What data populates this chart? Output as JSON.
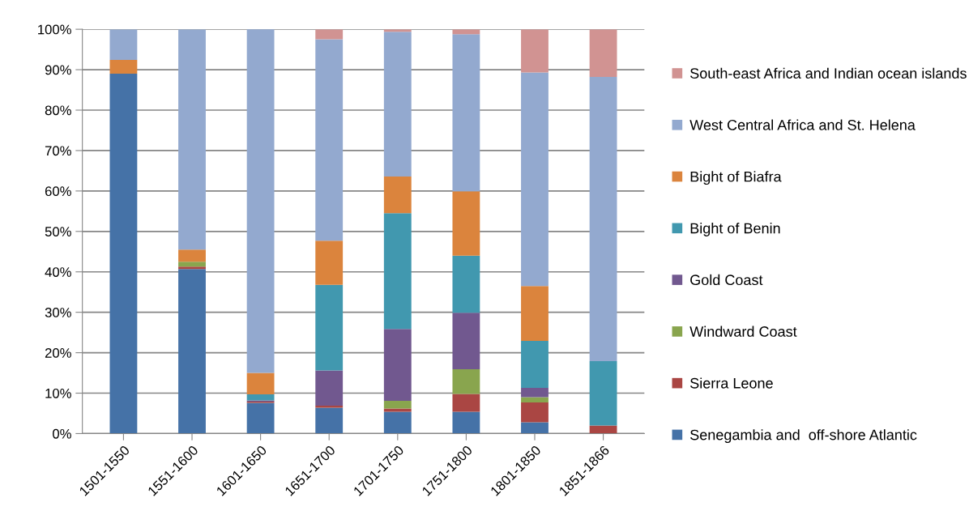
{
  "chart_data": {
    "type": "bar",
    "stacked": true,
    "categories": [
      "1501-1550",
      "1551-1600",
      "1601-1650",
      "1651-1700",
      "1701-1750",
      "1751-1800",
      "1801-1850",
      "1851-1866"
    ],
    "series": [
      {
        "name": "Senegambia and  off-shore Atlantic",
        "color": "#4572a7",
        "values": [
          89.0,
          40.7,
          7.6,
          6.4,
          5.4,
          5.4,
          2.8,
          0
        ]
      },
      {
        "name": "Sierra Leone",
        "color": "#aa4643",
        "values": [
          0,
          0.6,
          0.3,
          0.5,
          0.8,
          4.4,
          4.9,
          2.0
        ]
      },
      {
        "name": "Windward Coast",
        "color": "#89a54e",
        "values": [
          0,
          1.2,
          0,
          0,
          1.9,
          6.1,
          1.3,
          0
        ]
      },
      {
        "name": "Gold Coast",
        "color": "#71588f",
        "values": [
          0,
          0,
          0.3,
          8.7,
          17.8,
          14.0,
          2.3,
          0
        ]
      },
      {
        "name": "Bight of Benin",
        "color": "#4198af",
        "values": [
          0,
          0,
          1.5,
          21.2,
          28.6,
          14.1,
          11.6,
          15.9
        ]
      },
      {
        "name": "Bight of Biafra",
        "color": "#db843d",
        "values": [
          3.4,
          3.0,
          5.3,
          10.9,
          9.1,
          15.9,
          13.6,
          0
        ]
      },
      {
        "name": "West Central Africa and St. Helena",
        "color": "#93a9cf",
        "values": [
          7.6,
          54.5,
          85.1,
          49.8,
          35.8,
          38.9,
          52.8,
          70.3
        ]
      },
      {
        "name": "South-east Africa and Indian ocean islands",
        "color": "#d19392",
        "values": [
          0,
          0,
          0,
          2.5,
          0.6,
          1.2,
          10.7,
          11.8
        ]
      }
    ],
    "ylim": [
      0,
      100
    ],
    "yticks": [
      {
        "value": 0,
        "label": "0%"
      },
      {
        "value": 10,
        "label": "10%"
      },
      {
        "value": 20,
        "label": "20%"
      },
      {
        "value": 30,
        "label": "30%"
      },
      {
        "value": 40,
        "label": "40%"
      },
      {
        "value": 50,
        "label": "50%"
      },
      {
        "value": 60,
        "label": "60%"
      },
      {
        "value": 70,
        "label": "70%"
      },
      {
        "value": 80,
        "label": "80%"
      },
      {
        "value": 90,
        "label": "90%"
      },
      {
        "value": 100,
        "label": "100%"
      }
    ],
    "grid": "y",
    "legend": "right"
  }
}
